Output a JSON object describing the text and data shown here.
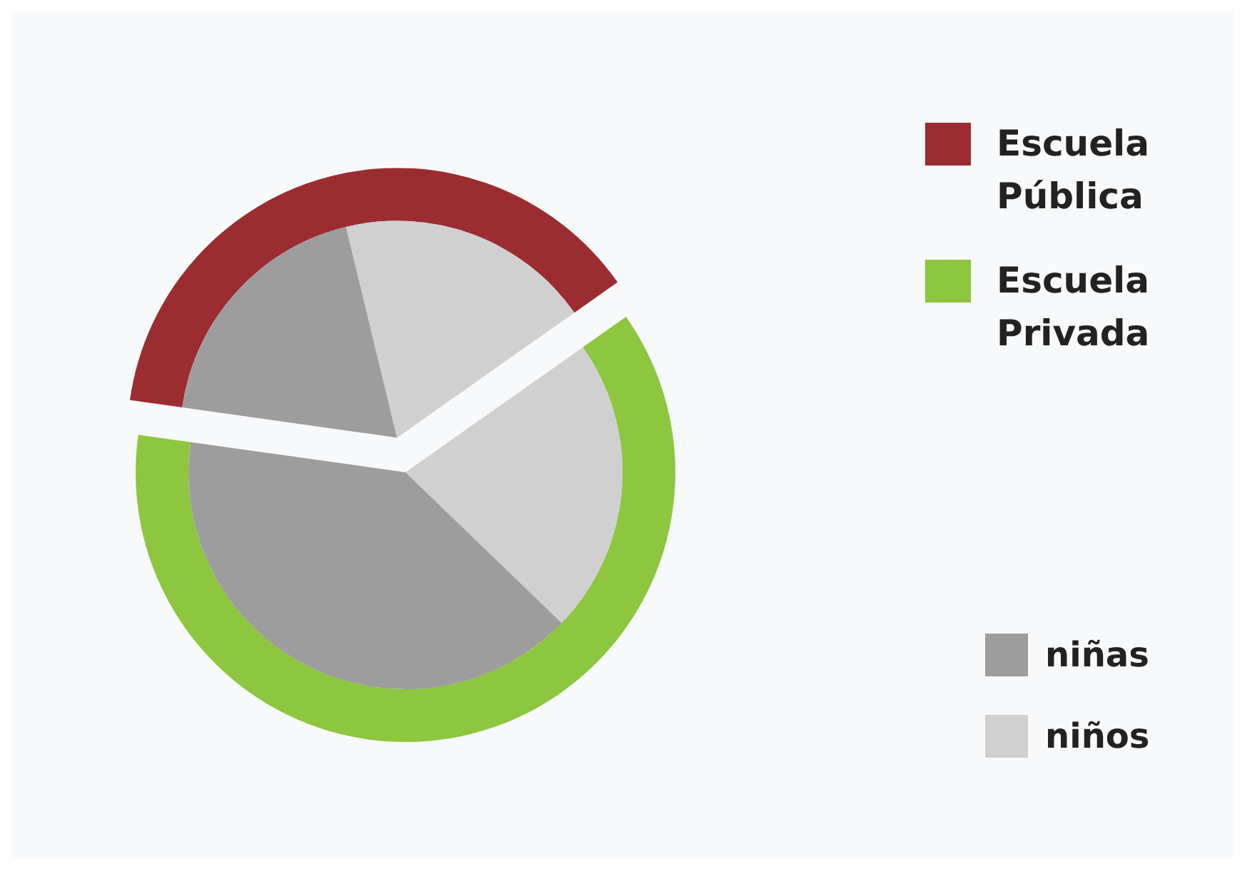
{
  "chart_data": [
    {
      "type": "donut",
      "categories": [
        "Escuela Pública",
        "Escuela Privada"
      ],
      "values": [
        38,
        62
      ],
      "colors": [
        "#9b2d30",
        "#8dc63f"
      ],
      "legend": "top right"
    },
    {
      "type": "pie",
      "categories": [
        "niñas",
        "niños",
        null,
        null
      ],
      "values": [
        19,
        19,
        22,
        40
      ],
      "colors": [
        "#9d9d9d",
        "#d0d0d0",
        "#d0d0d0",
        "#9d9d9d"
      ],
      "legend": "bottom right"
    }
  ]
}
